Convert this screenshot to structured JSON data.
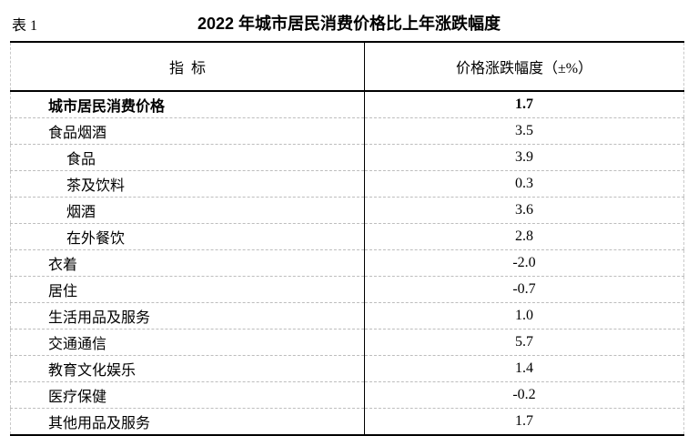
{
  "caption": {
    "table_label": "表 1",
    "title": "2022 年城市居民消费价格比上年涨跌幅度"
  },
  "table": {
    "columns": [
      "指  标",
      "价格涨跌幅度（±%）"
    ],
    "rows": [
      {
        "label": "城市居民消费价格",
        "value": "1.7"
      },
      {
        "label": "食品烟酒",
        "value": "3.5"
      },
      {
        "label": "食品",
        "value": "3.9"
      },
      {
        "label": "茶及饮料",
        "value": "0.3"
      },
      {
        "label": "烟酒",
        "value": "3.6"
      },
      {
        "label": "在外餐饮",
        "value": "2.8"
      },
      {
        "label": "衣着",
        "value": "-2.0"
      },
      {
        "label": "居住",
        "value": "-0.7"
      },
      {
        "label": "生活用品及服务",
        "value": "1.0"
      },
      {
        "label": "交通通信",
        "value": "5.7"
      },
      {
        "label": "教育文化娱乐",
        "value": "1.4"
      },
      {
        "label": "医疗保健",
        "value": "-0.2"
      },
      {
        "label": "其他用品及服务",
        "value": "1.7"
      }
    ]
  },
  "colors": {
    "background": "#ffffff",
    "text": "#000000",
    "solid_border": "#000000",
    "dashed_border": "#bdbdbd"
  }
}
